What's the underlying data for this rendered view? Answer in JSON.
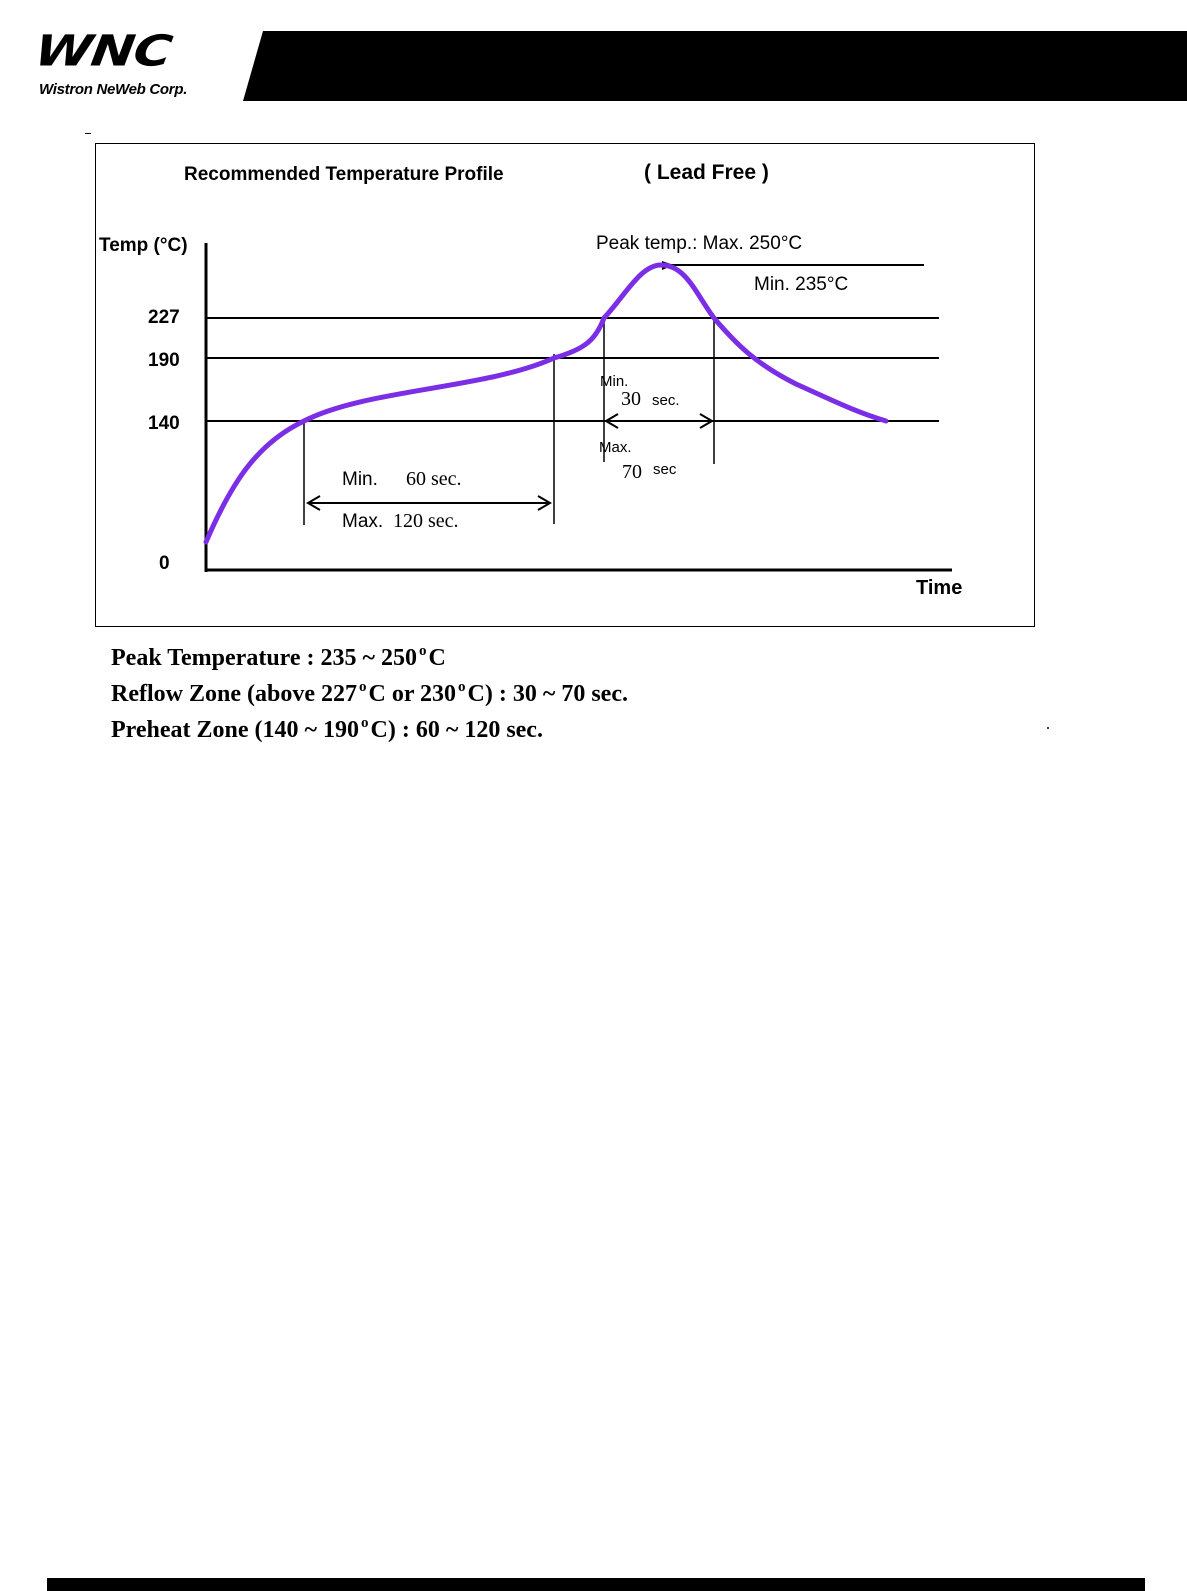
{
  "header": {
    "logo_text": "WNC",
    "company_name": "Wistron NeWeb Corp."
  },
  "chart_data": {
    "type": "line",
    "title": "Recommended Temperature Profile",
    "subtitle": "( Lead Free )",
    "ylabel": "Temp (°C)",
    "xlabel": "Time",
    "y_ticks": [
      {
        "value": 0,
        "label": "0"
      },
      {
        "value": 140,
        "label": "140"
      },
      {
        "value": 190,
        "label": "190"
      },
      {
        "value": 227,
        "label": "227"
      }
    ],
    "reference_lines": [
      140,
      190,
      227,
      250
    ],
    "curve_color": "#7b2ee6",
    "annotations": {
      "peak_label": "Peak temp.:  Max. 250°C",
      "peak_min_label": "Min. 235°C",
      "preheat_min": "Min.",
      "preheat_min_value": "60 sec.",
      "preheat_max": "Max.",
      "preheat_max_value": "120 sec.",
      "reflow_min": "Min.",
      "reflow_min_value": "30",
      "reflow_min_unit": "sec.",
      "reflow_max": "Max.",
      "reflow_max_value": "70",
      "reflow_max_unit": "sec"
    }
  },
  "notes": {
    "peak": {
      "label": "Peak Temperature : 235 ~ 250",
      "sup": "o",
      "tail": "C"
    },
    "reflow": {
      "part1": "Reflow Zone (above 227",
      "sup1": "o",
      "part2": "C or 230",
      "sup2": "o",
      "part3": "C) : 30 ~ 70 sec."
    },
    "preheat": {
      "part1": "Preheat Zone (140 ~ 190",
      "sup": "o",
      "part2": "C) : 60 ~ 120 sec."
    }
  }
}
